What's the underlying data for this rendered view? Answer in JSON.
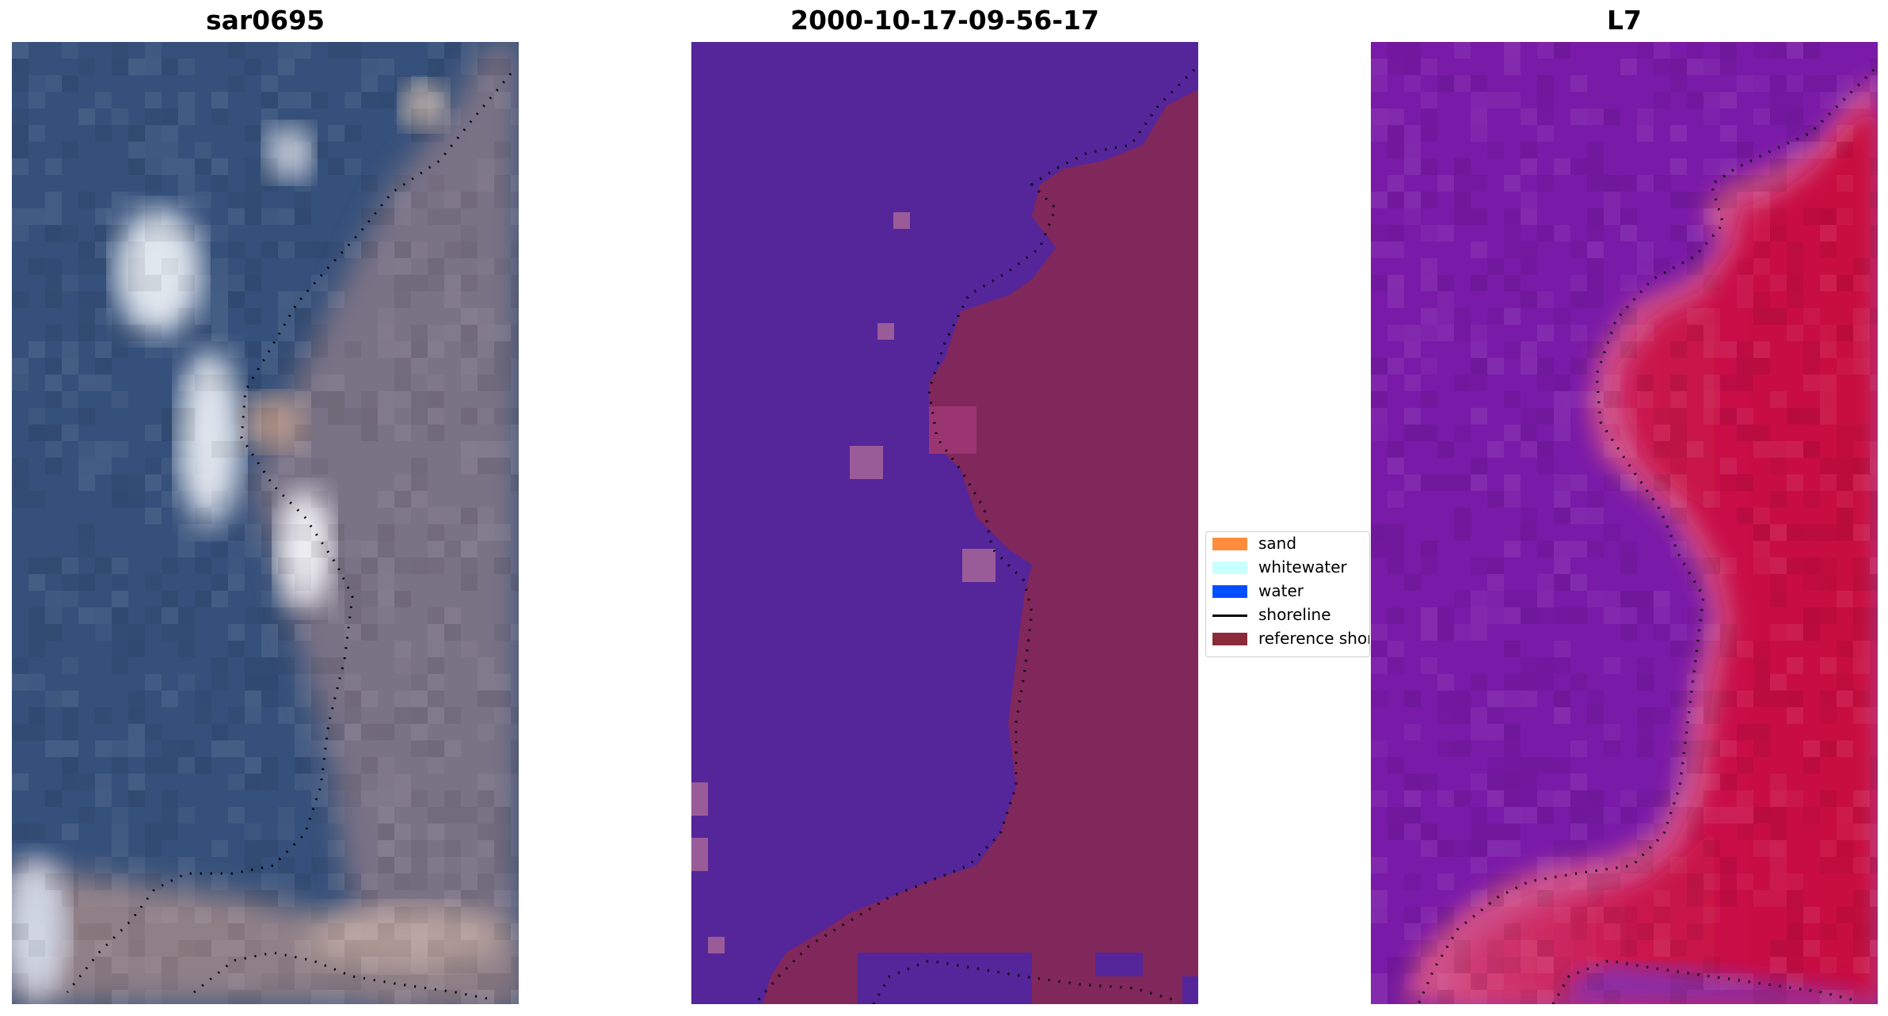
{
  "panels": [
    {
      "title": "sar0695"
    },
    {
      "title": "2000-10-17-09-56-17"
    },
    {
      "title": "L7"
    }
  ],
  "legend": {
    "entries": [
      {
        "label": "sand",
        "kind": "patch",
        "color": "#ff8c3c"
      },
      {
        "label": "whitewater",
        "kind": "patch",
        "color": "#c8ffff"
      },
      {
        "label": "water",
        "kind": "patch",
        "color": "#0050ff"
      },
      {
        "label": "shoreline",
        "kind": "line",
        "color": "#000000"
      },
      {
        "label": "reference shoreline",
        "kind": "patch",
        "color": "#8b2a3a"
      }
    ]
  },
  "colors": {
    "water_classified": "#55259a",
    "land_classified": "#80275c",
    "rgb_water": "#35507a",
    "rgb_land": "#7d7283",
    "ndwi_low": "#7a1aa8",
    "ndwi_high": "#c9124a"
  }
}
